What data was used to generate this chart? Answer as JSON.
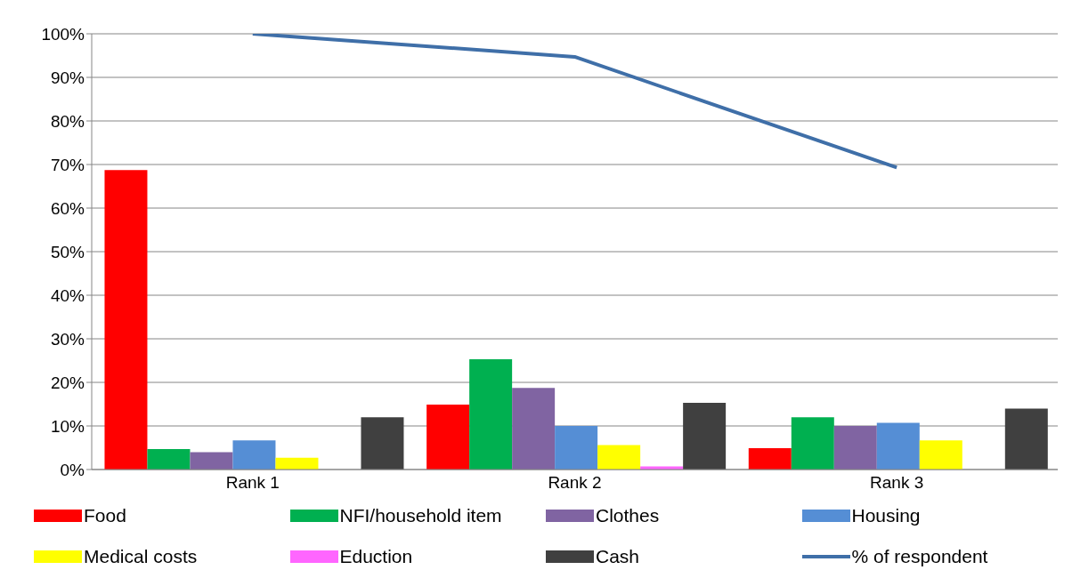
{
  "chart_data": {
    "type": "bar",
    "categories": [
      "Rank 1",
      "Rank 2",
      "Rank 3"
    ],
    "series": [
      {
        "name": "Food",
        "color": "#ff0000",
        "values": [
          68.7,
          14.9,
          4.9
        ]
      },
      {
        "name": "NFI/household item",
        "color": "#00b050",
        "values": [
          4.7,
          25.3,
          12
        ]
      },
      {
        "name": "Clothes",
        "color": "#8064a2",
        "values": [
          4,
          18.7,
          10
        ]
      },
      {
        "name": "Housing",
        "color": "#558ed5",
        "values": [
          6.7,
          10,
          10.7
        ]
      },
      {
        "name": "Medical costs",
        "color": "#ffff00",
        "values": [
          2.7,
          5.6,
          6.7
        ]
      },
      {
        "name": "Eduction",
        "color": "#ff66ff",
        "values": [
          0,
          0.7,
          0
        ]
      },
      {
        "name": "Cash",
        "color": "#404040",
        "values": [
          12,
          15.3,
          14
        ]
      },
      {
        "name": "% of respondent",
        "type": "line",
        "color": "#3f6fa8",
        "values": [
          100,
          94.7,
          69.3
        ]
      }
    ],
    "ylim": [
      0,
      100
    ],
    "yticks": [
      {
        "value": 0,
        "label": "0%"
      },
      {
        "value": 10,
        "label": "10%"
      },
      {
        "value": 20,
        "label": "20%"
      },
      {
        "value": 30,
        "label": "30%"
      },
      {
        "value": 40,
        "label": "40%"
      },
      {
        "value": 50,
        "label": "50%"
      },
      {
        "value": 60,
        "label": "60%"
      },
      {
        "value": 70,
        "label": "70%"
      },
      {
        "value": 80,
        "label": "80%"
      },
      {
        "value": 90,
        "label": "90%"
      },
      {
        "value": 100,
        "label": "100%"
      }
    ],
    "grid": "y",
    "legend": "bottom",
    "marker": "none",
    "line_style": "solid"
  }
}
